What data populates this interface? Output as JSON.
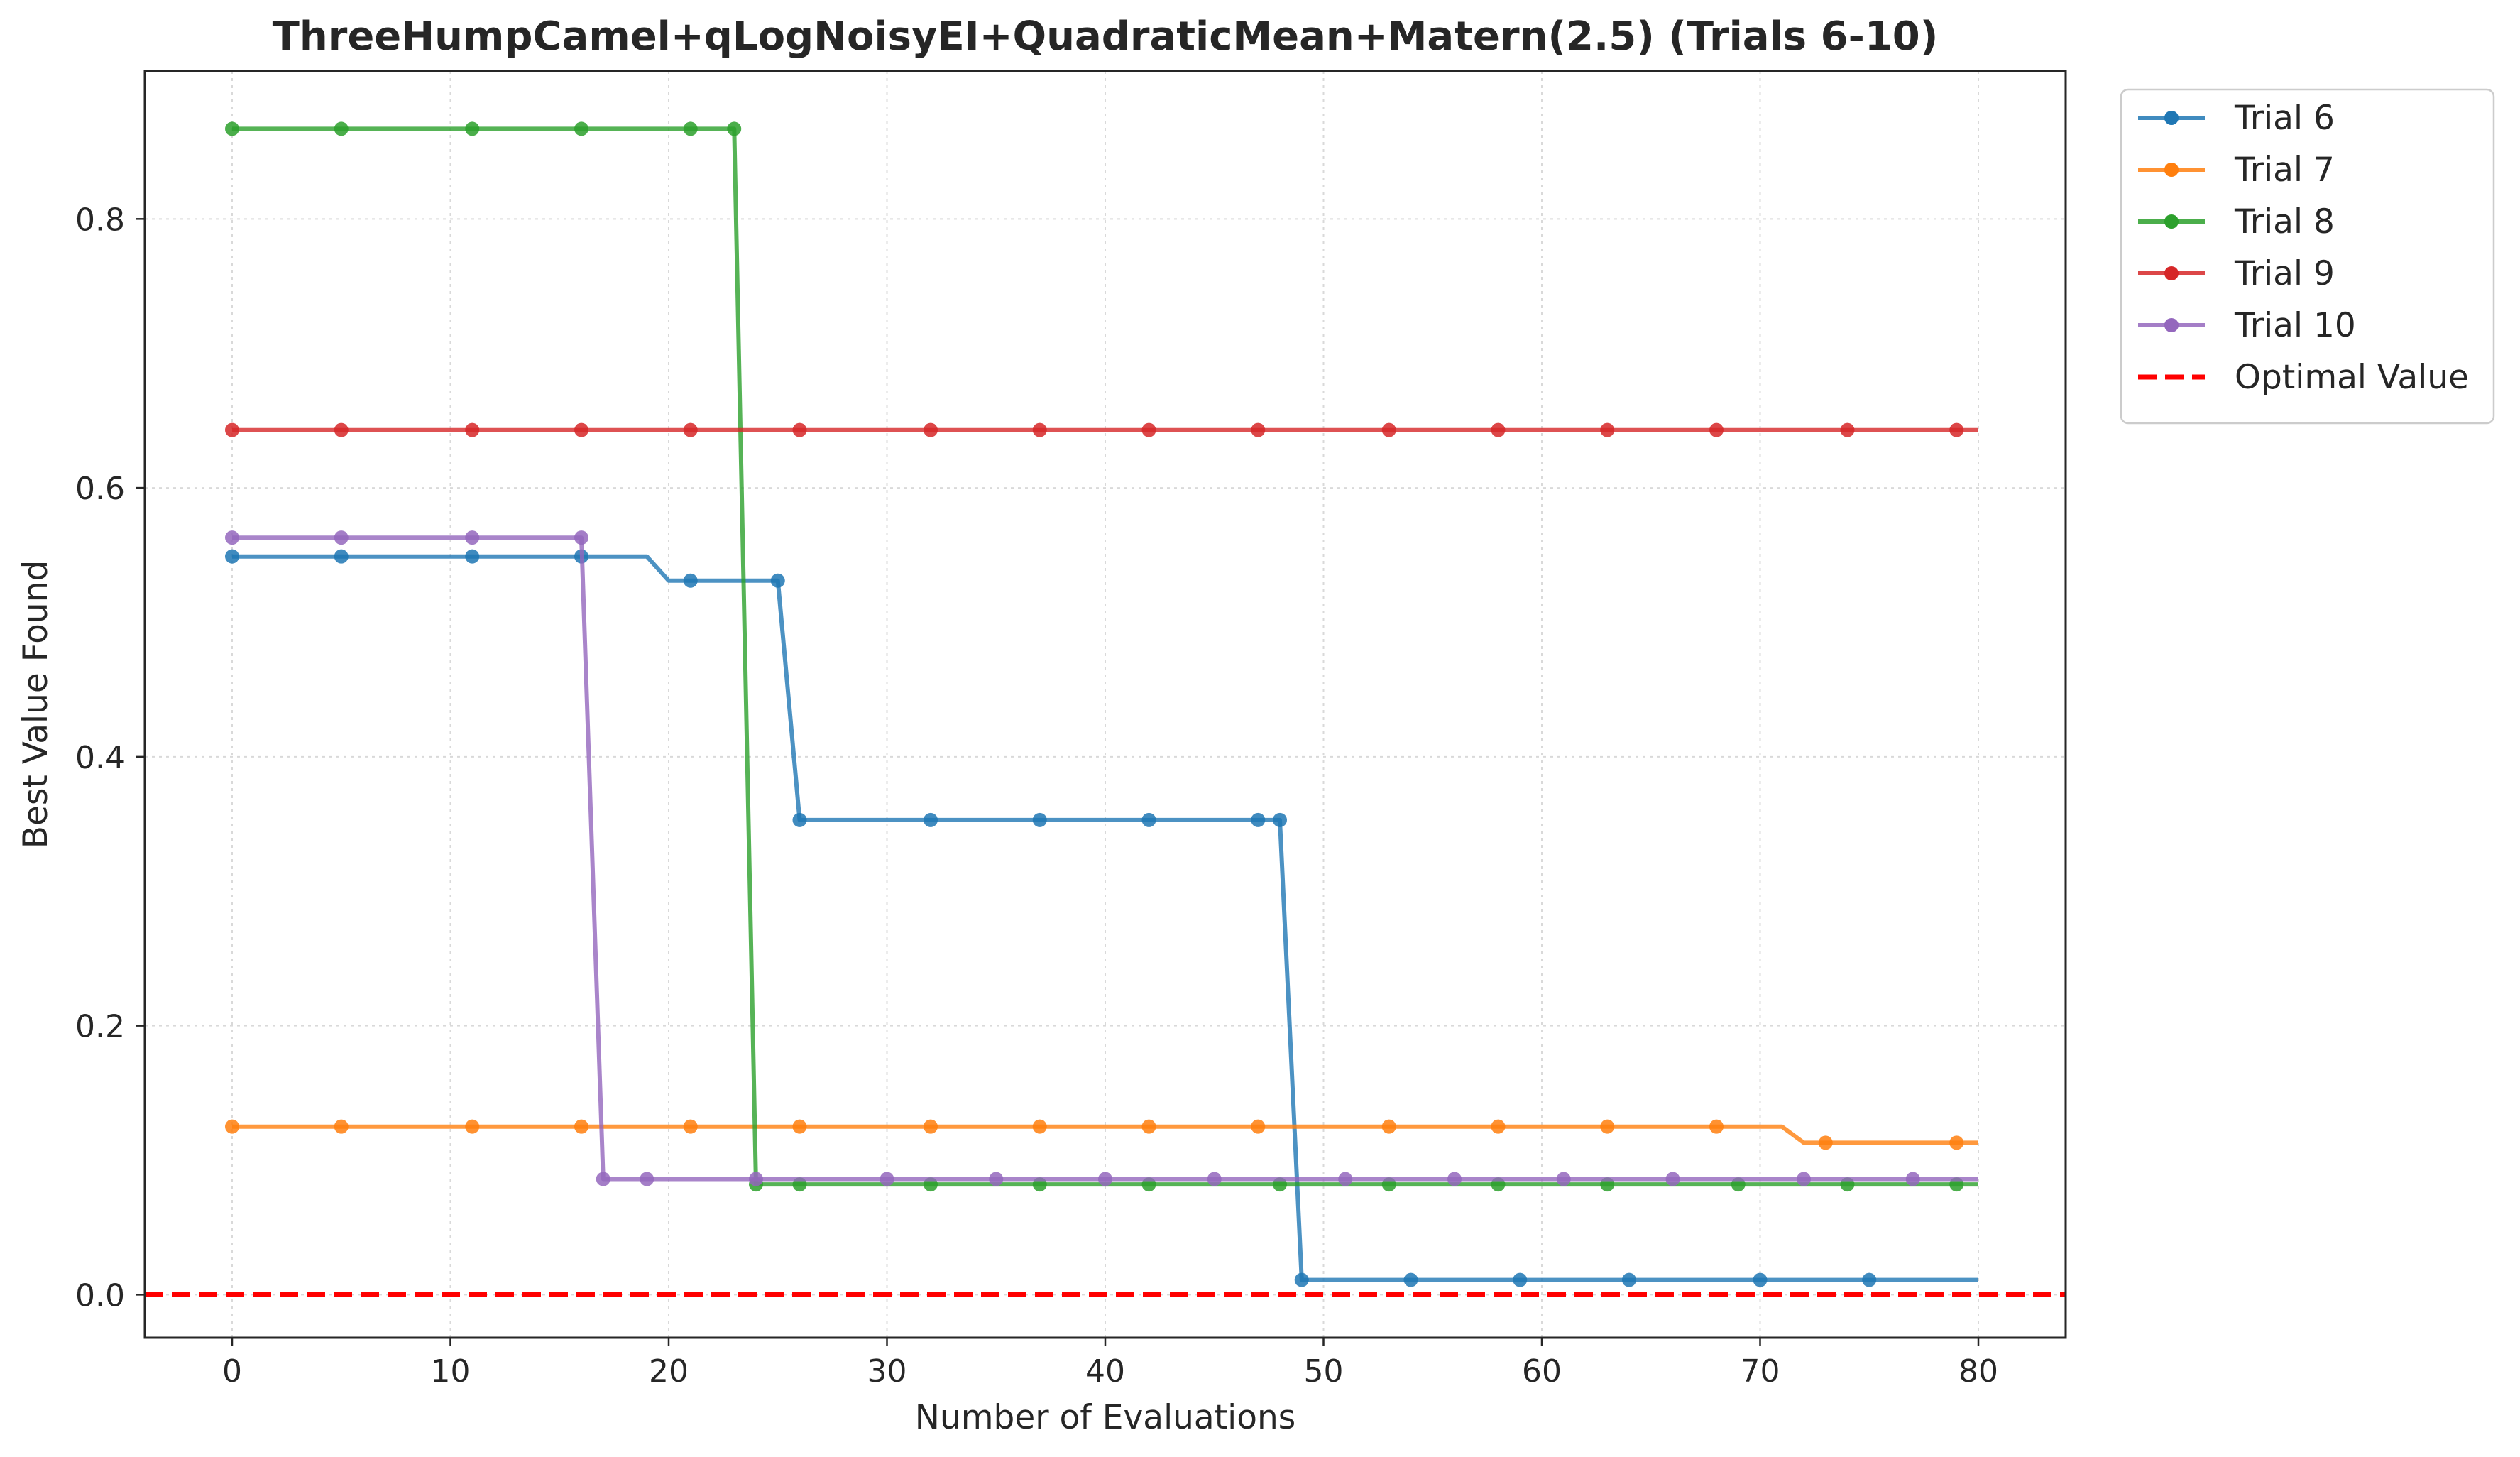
{
  "chart_data": {
    "type": "line",
    "title": "ThreeHumpCamel+qLogNoisyEI+QuadraticMean+Matern(2.5) (Trials 6-10)",
    "xlabel": "Number of Evaluations",
    "ylabel": "Best Value Found",
    "xlim": [
      -4,
      84
    ],
    "ylim": [
      -0.032,
      0.91
    ],
    "xticks": [
      0,
      10,
      20,
      30,
      40,
      50,
      60,
      70,
      80
    ],
    "yticks": [
      0.0,
      0.2,
      0.4,
      0.6,
      0.8
    ],
    "ytick_labels": [
      "0.0",
      "0.2",
      "0.4",
      "0.6",
      "0.8"
    ],
    "grid": true,
    "legend_position": "outside-top-right",
    "series": [
      {
        "name": "Trial 6",
        "color": "#1f77b4",
        "points": [
          [
            0,
            0.549
          ],
          [
            19,
            0.549
          ],
          [
            20,
            0.531
          ],
          [
            25,
            0.531
          ],
          [
            26,
            0.353
          ],
          [
            48,
            0.353
          ],
          [
            49,
            0.011
          ],
          [
            80,
            0.011
          ]
        ],
        "markers_x": [
          0,
          5,
          11,
          16,
          21,
          25,
          26,
          32,
          37,
          42,
          47,
          48,
          49,
          54,
          59,
          64,
          70,
          75
        ]
      },
      {
        "name": "Trial 7",
        "color": "#ff7f0e",
        "points": [
          [
            0,
            0.125
          ],
          [
            71,
            0.125
          ],
          [
            72,
            0.113
          ],
          [
            80,
            0.113
          ]
        ],
        "markers_x": [
          0,
          5,
          11,
          16,
          21,
          26,
          32,
          37,
          42,
          47,
          53,
          58,
          63,
          68,
          73,
          79
        ]
      },
      {
        "name": "Trial 8",
        "color": "#2ca02c",
        "points": [
          [
            0,
            0.867
          ],
          [
            23,
            0.867
          ],
          [
            24,
            0.082
          ],
          [
            80,
            0.082
          ]
        ],
        "markers_x": [
          0,
          5,
          11,
          16,
          21,
          23,
          24,
          26,
          32,
          37,
          42,
          48,
          53,
          58,
          63,
          69,
          74,
          79
        ]
      },
      {
        "name": "Trial 9",
        "color": "#d62728",
        "points": [
          [
            0,
            0.643
          ],
          [
            80,
            0.643
          ]
        ],
        "markers_x": [
          0,
          5,
          11,
          16,
          21,
          26,
          32,
          37,
          42,
          47,
          53,
          58,
          63,
          68,
          74,
          79
        ]
      },
      {
        "name": "Trial 10",
        "color": "#9467bd",
        "points": [
          [
            0,
            0.563
          ],
          [
            16,
            0.563
          ],
          [
            17,
            0.086
          ],
          [
            80,
            0.086
          ]
        ],
        "markers_x": [
          0,
          5,
          11,
          16,
          17,
          19,
          24,
          30,
          35,
          40,
          45,
          51,
          56,
          61,
          66,
          72,
          77
        ]
      }
    ],
    "reference_line": {
      "name": "Optimal Value",
      "value": 0.0,
      "color": "#ff0000",
      "style": "dashed"
    }
  }
}
